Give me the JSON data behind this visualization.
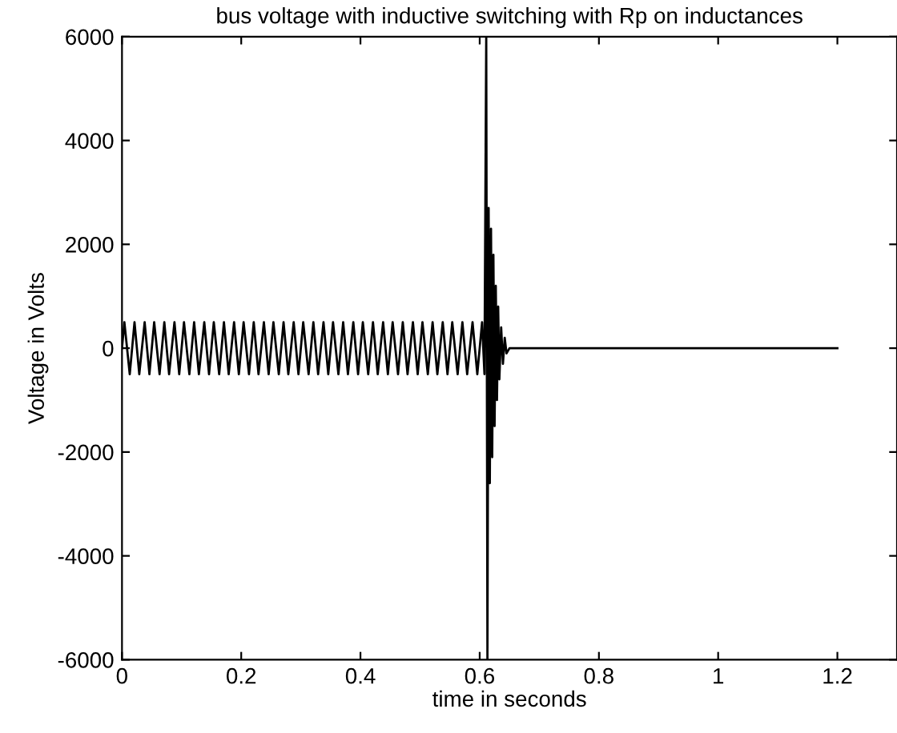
{
  "chart_data": {
    "type": "line",
    "title": "bus voltage with inductive switching with Rp on inductances",
    "xlabel": "time in seconds",
    "ylabel": "Voltage in Volts",
    "x": [
      0,
      0.004,
      0.013,
      0.021,
      0.029,
      0.038,
      0.046,
      0.054,
      0.063,
      0.071,
      0.079,
      0.088,
      0.096,
      0.104,
      0.113,
      0.121,
      0.129,
      0.138,
      0.146,
      0.154,
      0.163,
      0.171,
      0.179,
      0.188,
      0.196,
      0.204,
      0.213,
      0.221,
      0.229,
      0.238,
      0.246,
      0.254,
      0.263,
      0.271,
      0.279,
      0.288,
      0.296,
      0.304,
      0.313,
      0.321,
      0.329,
      0.338,
      0.346,
      0.354,
      0.363,
      0.371,
      0.379,
      0.388,
      0.396,
      0.404,
      0.413,
      0.421,
      0.429,
      0.438,
      0.446,
      0.454,
      0.463,
      0.471,
      0.479,
      0.488,
      0.496,
      0.504,
      0.513,
      0.521,
      0.529,
      0.538,
      0.546,
      0.554,
      0.563,
      0.571,
      0.579,
      0.588,
      0.596,
      0.604,
      0.608,
      0.611,
      0.613,
      0.615,
      0.617,
      0.619,
      0.621,
      0.623,
      0.625,
      0.627,
      0.629,
      0.631,
      0.633,
      0.636,
      0.639,
      0.642,
      0.645,
      0.65,
      1.2
    ],
    "series": [
      {
        "color": "#000000",
        "values": [
          0,
          500,
          -500,
          500,
          -500,
          500,
          -500,
          500,
          -500,
          500,
          -500,
          500,
          -500,
          500,
          -500,
          500,
          -500,
          500,
          -500,
          500,
          -500,
          500,
          -500,
          500,
          -500,
          500,
          -500,
          500,
          -500,
          500,
          -500,
          500,
          -500,
          500,
          -500,
          500,
          -500,
          500,
          -500,
          500,
          -500,
          500,
          -500,
          500,
          -500,
          500,
          -500,
          500,
          -500,
          500,
          -500,
          500,
          -500,
          500,
          -500,
          500,
          -500,
          500,
          -500,
          500,
          -500,
          500,
          -500,
          500,
          -500,
          500,
          -500,
          500,
          -500,
          500,
          -500,
          500,
          -500,
          500,
          -500,
          6000,
          -6000,
          2700,
          -2600,
          2300,
          -2100,
          1800,
          -1500,
          1200,
          -1000,
          800,
          -600,
          400,
          -300,
          200,
          -100,
          0,
          0
        ]
      }
    ],
    "xlim": [
      0,
      1.3
    ],
    "ylim": [
      -6000,
      6000
    ],
    "xticks": [
      0,
      0.2,
      0.4,
      0.6,
      0.8,
      1,
      1.2
    ],
    "yticks": [
      -6000,
      -4000,
      -2000,
      0,
      2000,
      4000,
      6000
    ],
    "grid": false,
    "marker": "none",
    "line_style": "solid"
  }
}
